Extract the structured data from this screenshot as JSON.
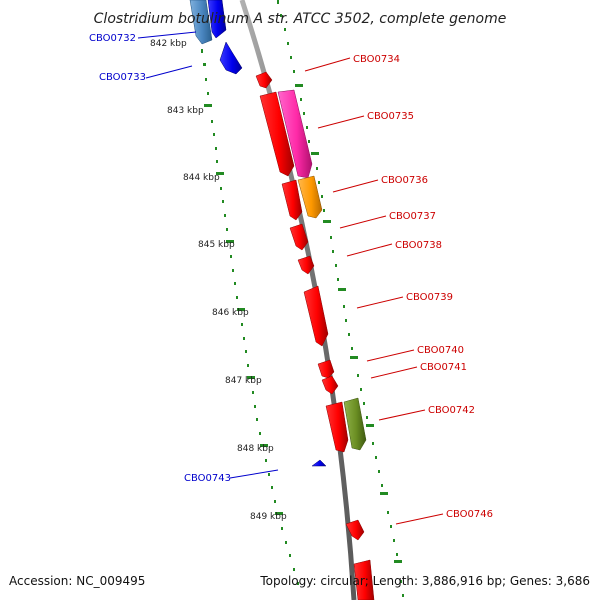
{
  "title": "Clostridium botulinum A str. ATCC 3502, complete genome",
  "accession": "Accession: NC_009495",
  "topology": "Topology: circular; Length: 3,886,916 bp; Genes: 3,686",
  "colors": {
    "backbone": "#8a8a8a",
    "tick_dots": "#228b22",
    "label_forward": "#cc0000",
    "label_reverse": "#0000cc",
    "gene_red": "#ff0000",
    "gene_magenta": "#ff33aa",
    "gene_orange": "#ff9900",
    "gene_olive": "#6b8e23",
    "gene_blue": "#0000ff",
    "gene_steelblue": "#4a86c0"
  },
  "scale_labels": [
    "842 kbp",
    "843 kbp",
    "844 kbp",
    "845 kbp",
    "846 kbp",
    "847 kbp",
    "848 kbp",
    "849 kbp"
  ],
  "genes": [
    {
      "id": "CBO0732",
      "strand": "reverse",
      "color": "steelblue",
      "labeled": true
    },
    {
      "id": "CBO0733",
      "strand": "reverse",
      "color": "blue",
      "labeled": true
    },
    {
      "id": "CBO0734",
      "strand": "forward",
      "color": "red",
      "labeled": true
    },
    {
      "id": "CBO0735",
      "strand": "forward",
      "color": "red",
      "labeled": true
    },
    {
      "id": "CBO0735b",
      "strand": "forward",
      "color": "magenta",
      "labeled": false
    },
    {
      "id": "CBO0736",
      "strand": "forward",
      "color": "red",
      "labeled": true
    },
    {
      "id": "CBO0736b",
      "strand": "forward",
      "color": "orange",
      "labeled": false
    },
    {
      "id": "CBO0737",
      "strand": "forward",
      "color": "red",
      "labeled": true
    },
    {
      "id": "CBO0738",
      "strand": "forward",
      "color": "red",
      "labeled": true
    },
    {
      "id": "CBO0739",
      "strand": "forward",
      "color": "red",
      "labeled": true
    },
    {
      "id": "CBO0740",
      "strand": "forward",
      "color": "red",
      "labeled": true
    },
    {
      "id": "CBO0741",
      "strand": "forward",
      "color": "red",
      "labeled": true
    },
    {
      "id": "CBO0742",
      "strand": "forward",
      "color": "red",
      "labeled": true
    },
    {
      "id": "CBO0742b",
      "strand": "forward",
      "color": "olive",
      "labeled": false
    },
    {
      "id": "CBO0743",
      "strand": "reverse",
      "color": "blue",
      "labeled": true
    },
    {
      "id": "CBO0746",
      "strand": "forward",
      "color": "red",
      "labeled": true
    },
    {
      "id": "CBO0746b",
      "strand": "forward",
      "color": "red",
      "labeled": false
    }
  ]
}
